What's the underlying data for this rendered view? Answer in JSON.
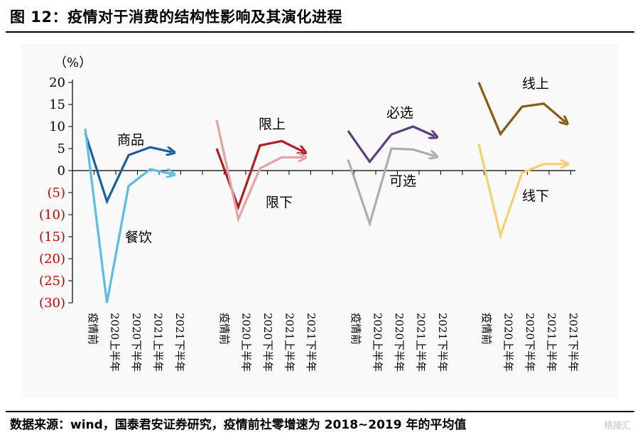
{
  "header": {
    "title": "图 12：疫情对于消费的结构性影响及其演化进程"
  },
  "footer": {
    "source": "数据来源：wind，国泰君安证券研究，疫情前社零增速为 2018~2019 年的平均值",
    "watermark": "格隆汇"
  },
  "chart_data": {
    "type": "line",
    "unit_label": "（%）",
    "ylim": [
      -30,
      20
    ],
    "yticks": [
      20,
      15,
      10,
      5,
      0,
      -5,
      -10,
      -15,
      -20,
      -25,
      -30
    ],
    "ytick_labels": [
      "20",
      "15",
      "10",
      "5",
      "0",
      "(5)",
      "(10)",
      "(15)",
      "(20)",
      "(25)",
      "(30)"
    ],
    "negative_tick_color": "#c00000",
    "categories": [
      "疫情前",
      "2020上半年",
      "2020下半年",
      "2021上半年",
      "2021下半年"
    ],
    "groups": [
      {
        "series": [
          {
            "name": "商品",
            "color": "#1a5da0",
            "values": [
              8.5,
              -7,
              3.5,
              5.3,
              4.2
            ]
          },
          {
            "name": "餐饮",
            "color": "#5bbde6",
            "values": [
              9.5,
              -30,
              -3.5,
              0.3,
              -0.8
            ]
          }
        ]
      },
      {
        "series": [
          {
            "name": "限上",
            "color": "#b01e24",
            "values": [
              5,
              -8.3,
              5.7,
              6.7,
              4.3
            ]
          },
          {
            "name": "限下",
            "color": "#e3a3a3",
            "values": [
              11.5,
              -11,
              0.5,
              3,
              3
            ]
          }
        ]
      },
      {
        "series": [
          {
            "name": "必选",
            "color": "#5b3f7f",
            "values": [
              9,
              2,
              8.2,
              10,
              7.8
            ]
          },
          {
            "name": "可选",
            "color": "#adadad",
            "values": [
              2.5,
              -12,
              5,
              4.8,
              3.3
            ]
          }
        ]
      },
      {
        "series": [
          {
            "name": "线上",
            "color": "#8a5a10",
            "values": [
              20,
              8.3,
              14.5,
              15.2,
              11
            ]
          },
          {
            "name": "线下",
            "color": "#f8cf6d",
            "values": [
              6,
              -14.7,
              -0.5,
              1.5,
              1.5
            ]
          }
        ]
      }
    ]
  }
}
